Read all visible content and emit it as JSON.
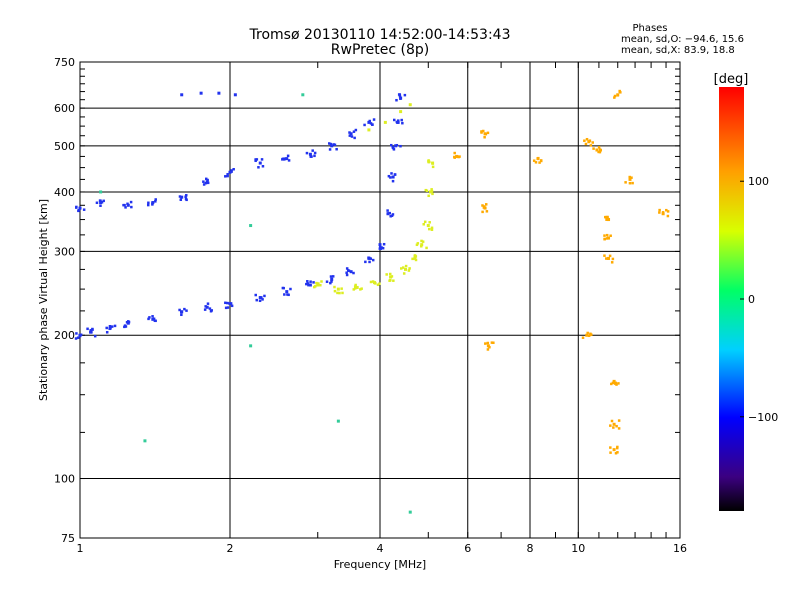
{
  "chart_data": {
    "type": "scatter",
    "title": "Tromsø 20130110 14:52:00-14:53:43",
    "subtitle": "RwPretec (8p)",
    "xlabel": "Frequency [MHz]",
    "ylabel": "Stationary phase Virtual Height [km]",
    "x_scale": "log",
    "y_scale": "log",
    "xlim": [
      1,
      16
    ],
    "ylim": [
      75,
      750
    ],
    "x_ticks": [
      1,
      2,
      4,
      6,
      8,
      10,
      16
    ],
    "x_tick_labels": [
      "1",
      "2",
      "4",
      "6",
      "8",
      "10",
      "16"
    ],
    "y_ticks": [
      75,
      100,
      200,
      300,
      400,
      500,
      600,
      750
    ],
    "y_tick_labels": [
      "75",
      "100",
      "200",
      "300",
      "400",
      "500",
      "600",
      "750"
    ],
    "grid": true,
    "stats": {
      "heading": "Phases",
      "line_o": "mean, sd,O: −94.6, 15.6",
      "line_x": "mean, sd,X:  83.9, 18.8"
    },
    "colorbar": {
      "label": "[deg]",
      "range": [
        -180,
        180
      ],
      "ticks": [
        100,
        0,
        -100
      ],
      "tick_labels": [
        "100",
        "0",
        "−100"
      ],
      "colormap": "rainbow (black-purple-blue-cyan-green-yellow-orange-red)"
    },
    "series": [
      {
        "name": "o-trace F2 layer (blue, ~-100 deg)",
        "color": "#2233ee",
        "points": [
          [
            1.0,
            200
          ],
          [
            1.05,
            203
          ],
          [
            1.15,
            207
          ],
          [
            1.25,
            212
          ],
          [
            1.4,
            216
          ],
          [
            1.6,
            224
          ],
          [
            1.8,
            229
          ],
          [
            2.0,
            233
          ],
          [
            2.3,
            240
          ],
          [
            2.6,
            247
          ],
          [
            2.9,
            255
          ],
          [
            3.2,
            262
          ],
          [
            3.5,
            272
          ],
          [
            3.8,
            290
          ],
          [
            4.0,
            310
          ],
          [
            4.15,
            360
          ],
          [
            4.25,
            430
          ],
          [
            4.3,
            500
          ],
          [
            4.35,
            560
          ],
          [
            4.4,
            630
          ]
        ]
      },
      {
        "name": "x-trace F2 layer (yellow, ~+100 deg)",
        "color": "#ddee22",
        "points": [
          [
            3.0,
            255
          ],
          [
            3.3,
            250
          ],
          [
            3.6,
            252
          ],
          [
            3.9,
            258
          ],
          [
            4.2,
            265
          ],
          [
            4.5,
            275
          ],
          [
            4.7,
            290
          ],
          [
            4.85,
            310
          ],
          [
            5.0,
            340
          ],
          [
            5.05,
            400
          ],
          [
            5.1,
            460
          ]
        ]
      },
      {
        "name": "upper blue band (blue, ~-100 deg)",
        "color": "#2233ee",
        "points": [
          [
            1.0,
            370
          ],
          [
            1.1,
            380
          ],
          [
            1.25,
            375
          ],
          [
            1.4,
            380
          ],
          [
            1.6,
            390
          ],
          [
            1.8,
            420
          ],
          [
            2.0,
            440
          ],
          [
            2.3,
            460
          ],
          [
            2.6,
            470
          ],
          [
            2.9,
            480
          ],
          [
            3.2,
            500
          ],
          [
            3.5,
            530
          ],
          [
            3.8,
            560
          ]
        ]
      },
      {
        "name": "upper yellow band (yellow, ~+100 deg)",
        "color": "#ddee22",
        "points": [
          [
            3.8,
            540
          ],
          [
            4.1,
            560
          ],
          [
            4.4,
            590
          ],
          [
            4.6,
            610
          ]
        ]
      },
      {
        "name": "top blue cluster (blue, ~-100 deg)",
        "color": "#2233ee",
        "points": [
          [
            1.6,
            640
          ],
          [
            1.75,
            645
          ],
          [
            1.9,
            645
          ],
          [
            2.05,
            640
          ]
        ]
      },
      {
        "name": "scattered echoes high frequency",
        "color": "#ffaa00",
        "points": [
          [
            11.5,
            350
          ],
          [
            11.5,
            320
          ],
          [
            11.5,
            290
          ],
          [
            11.8,
            160
          ],
          [
            11.8,
            130
          ],
          [
            11.8,
            115
          ],
          [
            12.0,
            640
          ],
          [
            6.5,
            530
          ],
          [
            6.5,
            370
          ],
          [
            6.6,
            190
          ],
          [
            8.3,
            470
          ],
          [
            10.5,
            510
          ],
          [
            10.9,
            490
          ],
          [
            10.4,
            200
          ],
          [
            12.7,
            425
          ],
          [
            14.8,
            360
          ],
          [
            5.7,
            475
          ]
        ]
      },
      {
        "name": "scattered echoes low frequency",
        "color": "#33cc99",
        "points": [
          [
            1.35,
            120
          ],
          [
            2.2,
            190
          ],
          [
            2.8,
            640
          ],
          [
            2.2,
            340
          ],
          [
            3.3,
            132
          ],
          [
            4.6,
            85
          ],
          [
            1.1,
            400
          ]
        ]
      }
    ]
  }
}
